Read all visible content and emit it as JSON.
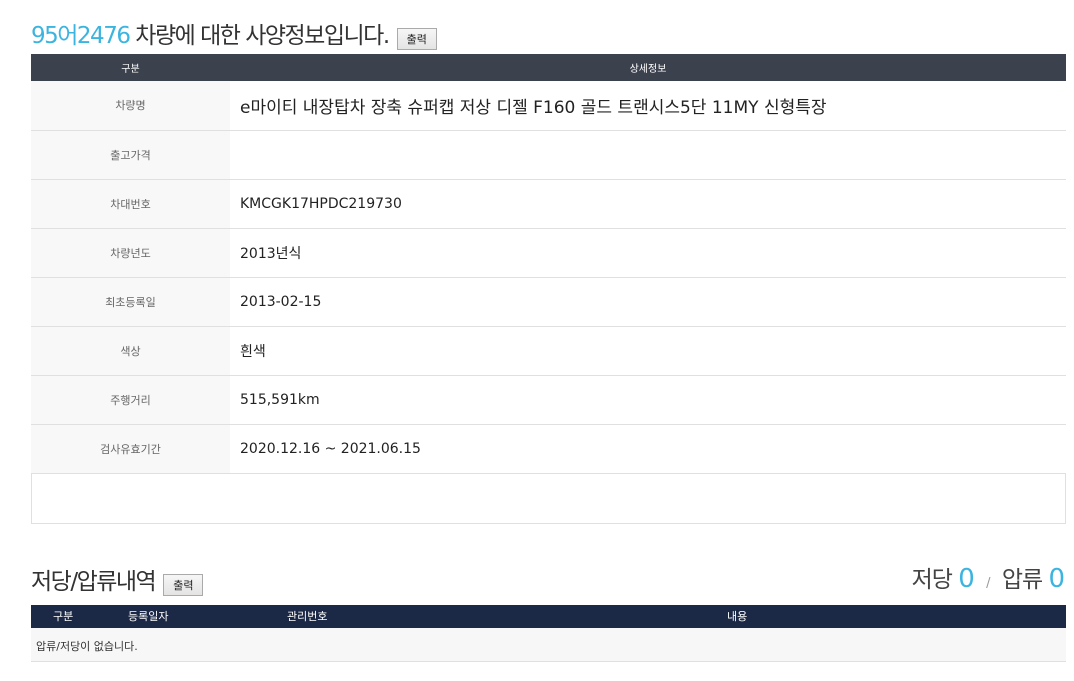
{
  "header": {
    "plate": "95어2476",
    "title_suffix": " 차량에 대한 사양정보입니다.",
    "print_label": "출력"
  },
  "spec_table": {
    "columns": [
      "구분",
      "상세정보"
    ],
    "rows": [
      {
        "label": "차량명",
        "value": "e마이티 내장탑차 장축 슈퍼캡 저상 디젤 F160 골드 트랜시스5단 11MY 신형특장"
      },
      {
        "label": "출고가격",
        "value": ""
      },
      {
        "label": "차대번호",
        "value": "KMCGK17HPDC219730"
      },
      {
        "label": "차량년도",
        "value": "2013년식"
      },
      {
        "label": "최초등록일",
        "value": "2013-02-15"
      },
      {
        "label": "색상",
        "value": "흰색"
      },
      {
        "label": "주행거리",
        "value": "515,591km"
      },
      {
        "label": "검사유효기간",
        "value": "2020.12.16 ~ 2021.06.15"
      }
    ]
  },
  "lien": {
    "title": "저당/압류내역",
    "print_label": "출력",
    "mortgage_label": "저당",
    "mortgage_count": "0",
    "separator": "/",
    "seizure_label": "압류",
    "seizure_count": "0",
    "columns": [
      "구분",
      "등록일자",
      "관리번호",
      "내용"
    ],
    "empty_message": "압류/저당이 없습니다."
  },
  "colors": {
    "accent": "#3cb4e0",
    "spec_header": "#3c414e",
    "lien_header": "#1b2846"
  }
}
